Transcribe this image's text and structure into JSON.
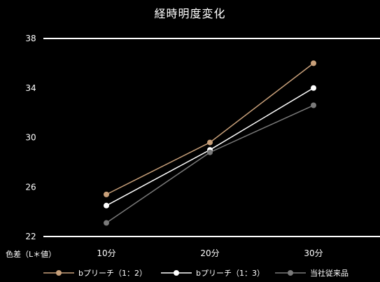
{
  "chart_data": {
    "type": "line",
    "title": "経時明度変化",
    "ylabel": "色差（L＊値）",
    "xlabel": "",
    "categories": [
      "10分",
      "20分",
      "30分"
    ],
    "yticks": [
      22,
      26,
      30,
      34,
      38
    ],
    "ylim": [
      22,
      38
    ],
    "grid": true,
    "legend_position": "bottom",
    "series": [
      {
        "name": "bプリーチ（1：2）",
        "values": [
          25.4,
          29.6,
          36.0
        ],
        "color": "#c8a07a"
      },
      {
        "name": "bプリーチ（1：3）",
        "values": [
          24.5,
          29.0,
          34.0
        ],
        "color": "#ffffff"
      },
      {
        "name": "当社従来品",
        "values": [
          23.1,
          28.8,
          32.6
        ],
        "color": "#7a7a7a"
      }
    ]
  }
}
